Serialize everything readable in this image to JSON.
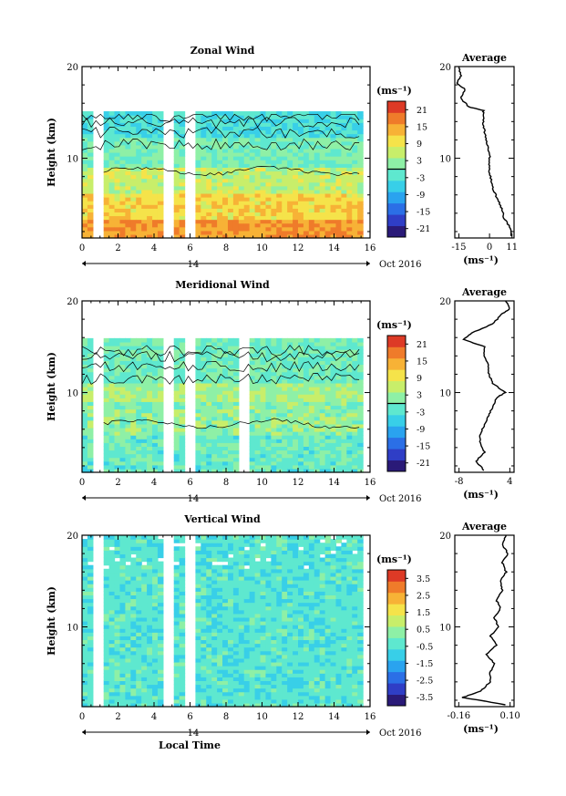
{
  "figure": {
    "xlabel": "Local Time",
    "date_label": "Oct 2016",
    "day_label": "14"
  },
  "colors": {
    "scale": [
      "#2a1a78",
      "#2f3ec6",
      "#2b6fe6",
      "#2aa3ef",
      "#38cfe8",
      "#5ee8cf",
      "#8ef0a6",
      "#c8ee6a",
      "#f5e34a",
      "#f7b236",
      "#ef7b2a",
      "#dd3a26"
    ],
    "gap": "#ffffff",
    "contour": "#000000"
  },
  "panels": [
    {
      "title": "Zonal Wind",
      "chart_data": {
        "type": "heatmap",
        "xlabel": "",
        "ylabel": "Height (km)",
        "xlim": [
          0,
          16
        ],
        "ylim": [
          1.3,
          20
        ],
        "x_ticks": [
          0,
          2,
          4,
          6,
          8,
          10,
          12,
          14,
          16
        ],
        "y_ticks": [
          10,
          20
        ],
        "colorbar": {
          "unit": "(ms⁻¹)",
          "ticks": [
            21,
            15,
            9,
            3,
            -3,
            -9,
            -15,
            -21
          ],
          "range": [
            -24,
            24
          ],
          "zero_line": true
        },
        "data_gaps_hours": [
          [
            0.85,
            1.15
          ],
          [
            4.6,
            4.9
          ],
          [
            5.7,
            6.1
          ]
        ],
        "data_top_km": 15.0,
        "contours": true
      },
      "average": {
        "title": "Average",
        "xlabel": "(ms⁻¹)",
        "x_ticks": [
          -15,
          0,
          11
        ],
        "x_tick_labels": [
          "-15",
          "0",
          "11"
        ],
        "xlim": [
          -17,
          12
        ],
        "ylim": [
          1.3,
          20
        ],
        "y_ticks": [
          10,
          20
        ],
        "profile": [
          {
            "h": 1.5,
            "v": 11
          },
          {
            "h": 2.5,
            "v": 10
          },
          {
            "h": 3.5,
            "v": 7
          },
          {
            "h": 4.5,
            "v": 6
          },
          {
            "h": 5.5,
            "v": 4
          },
          {
            "h": 6.5,
            "v": 2
          },
          {
            "h": 7.5,
            "v": 1
          },
          {
            "h": 8.5,
            "v": 0
          },
          {
            "h": 9.5,
            "v": 0
          },
          {
            "h": 10.5,
            "v": 0
          },
          {
            "h": 11.5,
            "v": -1
          },
          {
            "h": 12.5,
            "v": -2
          },
          {
            "h": 13.5,
            "v": -3
          },
          {
            "h": 14.5,
            "v": -3
          },
          {
            "h": 15.2,
            "v": -3
          },
          {
            "h": 15.6,
            "v": -10
          },
          {
            "h": 16.5,
            "v": -14
          },
          {
            "h": 17.5,
            "v": -12
          },
          {
            "h": 18.2,
            "v": -16
          },
          {
            "h": 19.0,
            "v": -14
          },
          {
            "h": 20.0,
            "v": -15
          }
        ]
      }
    },
    {
      "title": "Meridional Wind",
      "chart_data": {
        "type": "heatmap",
        "xlabel": "",
        "ylabel": "Height (km)",
        "xlim": [
          0,
          16
        ],
        "ylim": [
          1.3,
          20
        ],
        "x_ticks": [
          0,
          2,
          4,
          6,
          8,
          10,
          12,
          14,
          16
        ],
        "y_ticks": [
          10,
          20
        ],
        "colorbar": {
          "unit": "(ms⁻¹)",
          "ticks": [
            21,
            15,
            9,
            3,
            -3,
            -9,
            -15,
            -21
          ],
          "range": [
            -24,
            24
          ],
          "zero_line": true
        },
        "data_gaps_hours": [
          [
            0.85,
            1.15
          ],
          [
            4.6,
            4.9
          ],
          [
            5.7,
            6.1
          ],
          [
            8.9,
            9.15
          ]
        ],
        "data_top_km": 15.8,
        "contours": true
      },
      "average": {
        "title": "Average",
        "xlabel": "(ms⁻¹)",
        "x_ticks": [
          -8,
          4
        ],
        "x_tick_labels": [
          "-8",
          "4"
        ],
        "xlim": [
          -9,
          5
        ],
        "ylim": [
          1.3,
          20
        ],
        "y_ticks": [
          10,
          20
        ],
        "profile": [
          {
            "h": 1.5,
            "v": -2
          },
          {
            "h": 2.5,
            "v": -4
          },
          {
            "h": 3.5,
            "v": -2
          },
          {
            "h": 4.5,
            "v": -3
          },
          {
            "h": 5.5,
            "v": -3
          },
          {
            "h": 6.5,
            "v": -2
          },
          {
            "h": 7.5,
            "v": -1
          },
          {
            "h": 8.5,
            "v": 0
          },
          {
            "h": 9.5,
            "v": 1
          },
          {
            "h": 10.0,
            "v": 3
          },
          {
            "h": 11,
            "v": 0
          },
          {
            "h": 12,
            "v": -1
          },
          {
            "h": 13,
            "v": -1
          },
          {
            "h": 14,
            "v": -2
          },
          {
            "h": 15,
            "v": -2
          },
          {
            "h": 15.8,
            "v": -7
          },
          {
            "h": 16.5,
            "v": -5
          },
          {
            "h": 17.5,
            "v": 0
          },
          {
            "h": 18.5,
            "v": 2
          },
          {
            "h": 19.2,
            "v": 4
          },
          {
            "h": 20.0,
            "v": 3
          }
        ]
      }
    },
    {
      "title": "Vertical Wind",
      "chart_data": {
        "type": "heatmap",
        "xlabel": "Local Time",
        "ylabel": "Height (km)",
        "xlim": [
          0,
          16
        ],
        "ylim": [
          1.3,
          20
        ],
        "x_ticks": [
          0,
          2,
          4,
          6,
          8,
          10,
          12,
          14,
          16
        ],
        "y_ticks": [
          10,
          20
        ],
        "colorbar": {
          "unit": "(ms⁻¹)",
          "ticks": [
            3.5,
            2.5,
            1.5,
            0.5,
            -0.5,
            -1.5,
            -2.5,
            -3.5
          ],
          "range": [
            -4,
            4
          ],
          "zero_line": false
        },
        "data_gaps_hours": [
          [
            0.85,
            1.15
          ],
          [
            4.6,
            4.9
          ],
          [
            5.7,
            6.1
          ]
        ],
        "data_top_km": 20.0,
        "contours": false
      },
      "average": {
        "title": "Average",
        "xlabel": "(ms⁻¹)",
        "x_ticks": [
          -0.16,
          0.1
        ],
        "x_tick_labels": [
          "-0.16",
          "0.10"
        ],
        "xlim": [
          -0.18,
          0.12
        ],
        "ylim": [
          1.3,
          20
        ],
        "y_ticks": [
          10,
          20
        ],
        "profile": [
          {
            "h": 1.5,
            "v": 0.08
          },
          {
            "h": 2.3,
            "v": -0.14
          },
          {
            "h": 3,
            "v": -0.05
          },
          {
            "h": 4,
            "v": 0.0
          },
          {
            "h": 5,
            "v": 0.0
          },
          {
            "h": 6,
            "v": 0.02
          },
          {
            "h": 7,
            "v": -0.02
          },
          {
            "h": 8,
            "v": 0.03
          },
          {
            "h": 9,
            "v": 0.0
          },
          {
            "h": 10,
            "v": 0.04
          },
          {
            "h": 11,
            "v": 0.02
          },
          {
            "h": 12,
            "v": 0.05
          },
          {
            "h": 13,
            "v": 0.03
          },
          {
            "h": 14,
            "v": 0.06
          },
          {
            "h": 15,
            "v": 0.05
          },
          {
            "h": 16,
            "v": 0.08
          },
          {
            "h": 17,
            "v": 0.06
          },
          {
            "h": 18,
            "v": 0.09
          },
          {
            "h": 19,
            "v": 0.06
          },
          {
            "h": 20,
            "v": 0.08
          }
        ]
      }
    }
  ]
}
